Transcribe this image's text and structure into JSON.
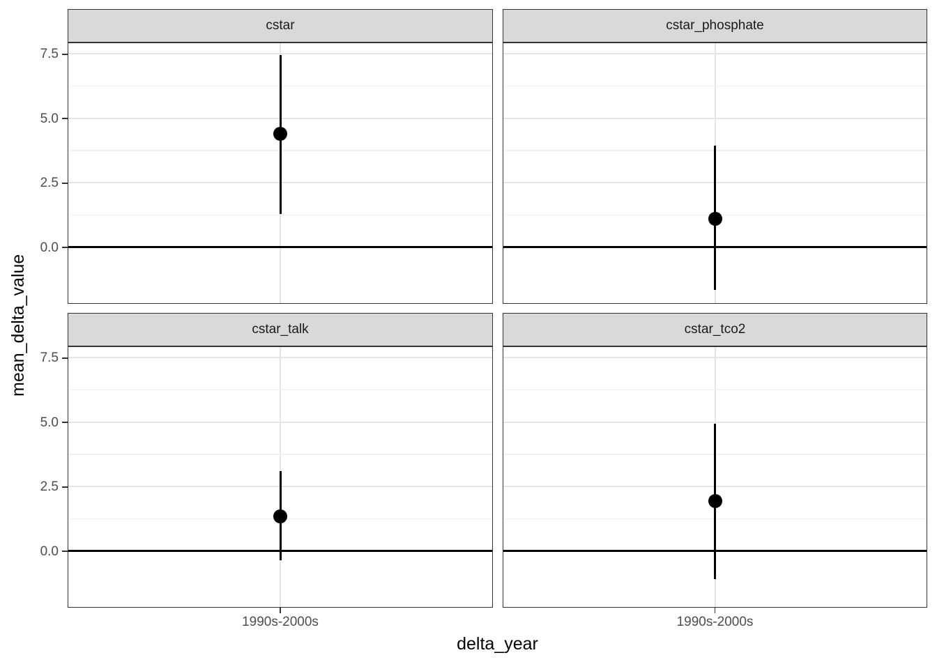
{
  "colors": {
    "strip_fill": "#d9d9d9",
    "panel_border": "#333333",
    "grid_major": "#e6e6e6",
    "grid_minor": "#f1f1f1",
    "tick_text": "#4d4d4d",
    "data_mark": "#000000"
  },
  "chart_data": {
    "type": "pointrange",
    "title": "",
    "xlabel": "delta_year",
    "ylabel": "mean_delta_value",
    "x_categories": [
      "1990s-2000s"
    ],
    "ylim": [
      -2.17,
      7.91
    ],
    "y_major_ticks": [
      {
        "value": 0.0,
        "label": "0.0"
      },
      {
        "value": 2.5,
        "label": "2.5"
      },
      {
        "value": 5.0,
        "label": "5.0"
      },
      {
        "value": 7.5,
        "label": "7.5"
      }
    ],
    "y_minor_ticks": [
      1.25,
      3.75,
      6.25
    ],
    "hline_y": 0,
    "grid": "major+minor, vertical major at category",
    "legend": "none",
    "facets": [
      {
        "name": "cstar",
        "x": "1990s-2000s",
        "mean": 4.4,
        "ymin": 1.3,
        "ymax": 7.45
      },
      {
        "name": "cstar_phosphate",
        "x": "1990s-2000s",
        "mean": 1.1,
        "ymin": -1.65,
        "ymax": 3.95
      },
      {
        "name": "cstar_talk",
        "x": "1990s-2000s",
        "mean": 1.35,
        "ymin": -0.35,
        "ymax": 3.1
      },
      {
        "name": "cstar_tco2",
        "x": "1990s-2000s",
        "mean": 1.95,
        "ymin": -1.1,
        "ymax": 4.95
      }
    ]
  }
}
